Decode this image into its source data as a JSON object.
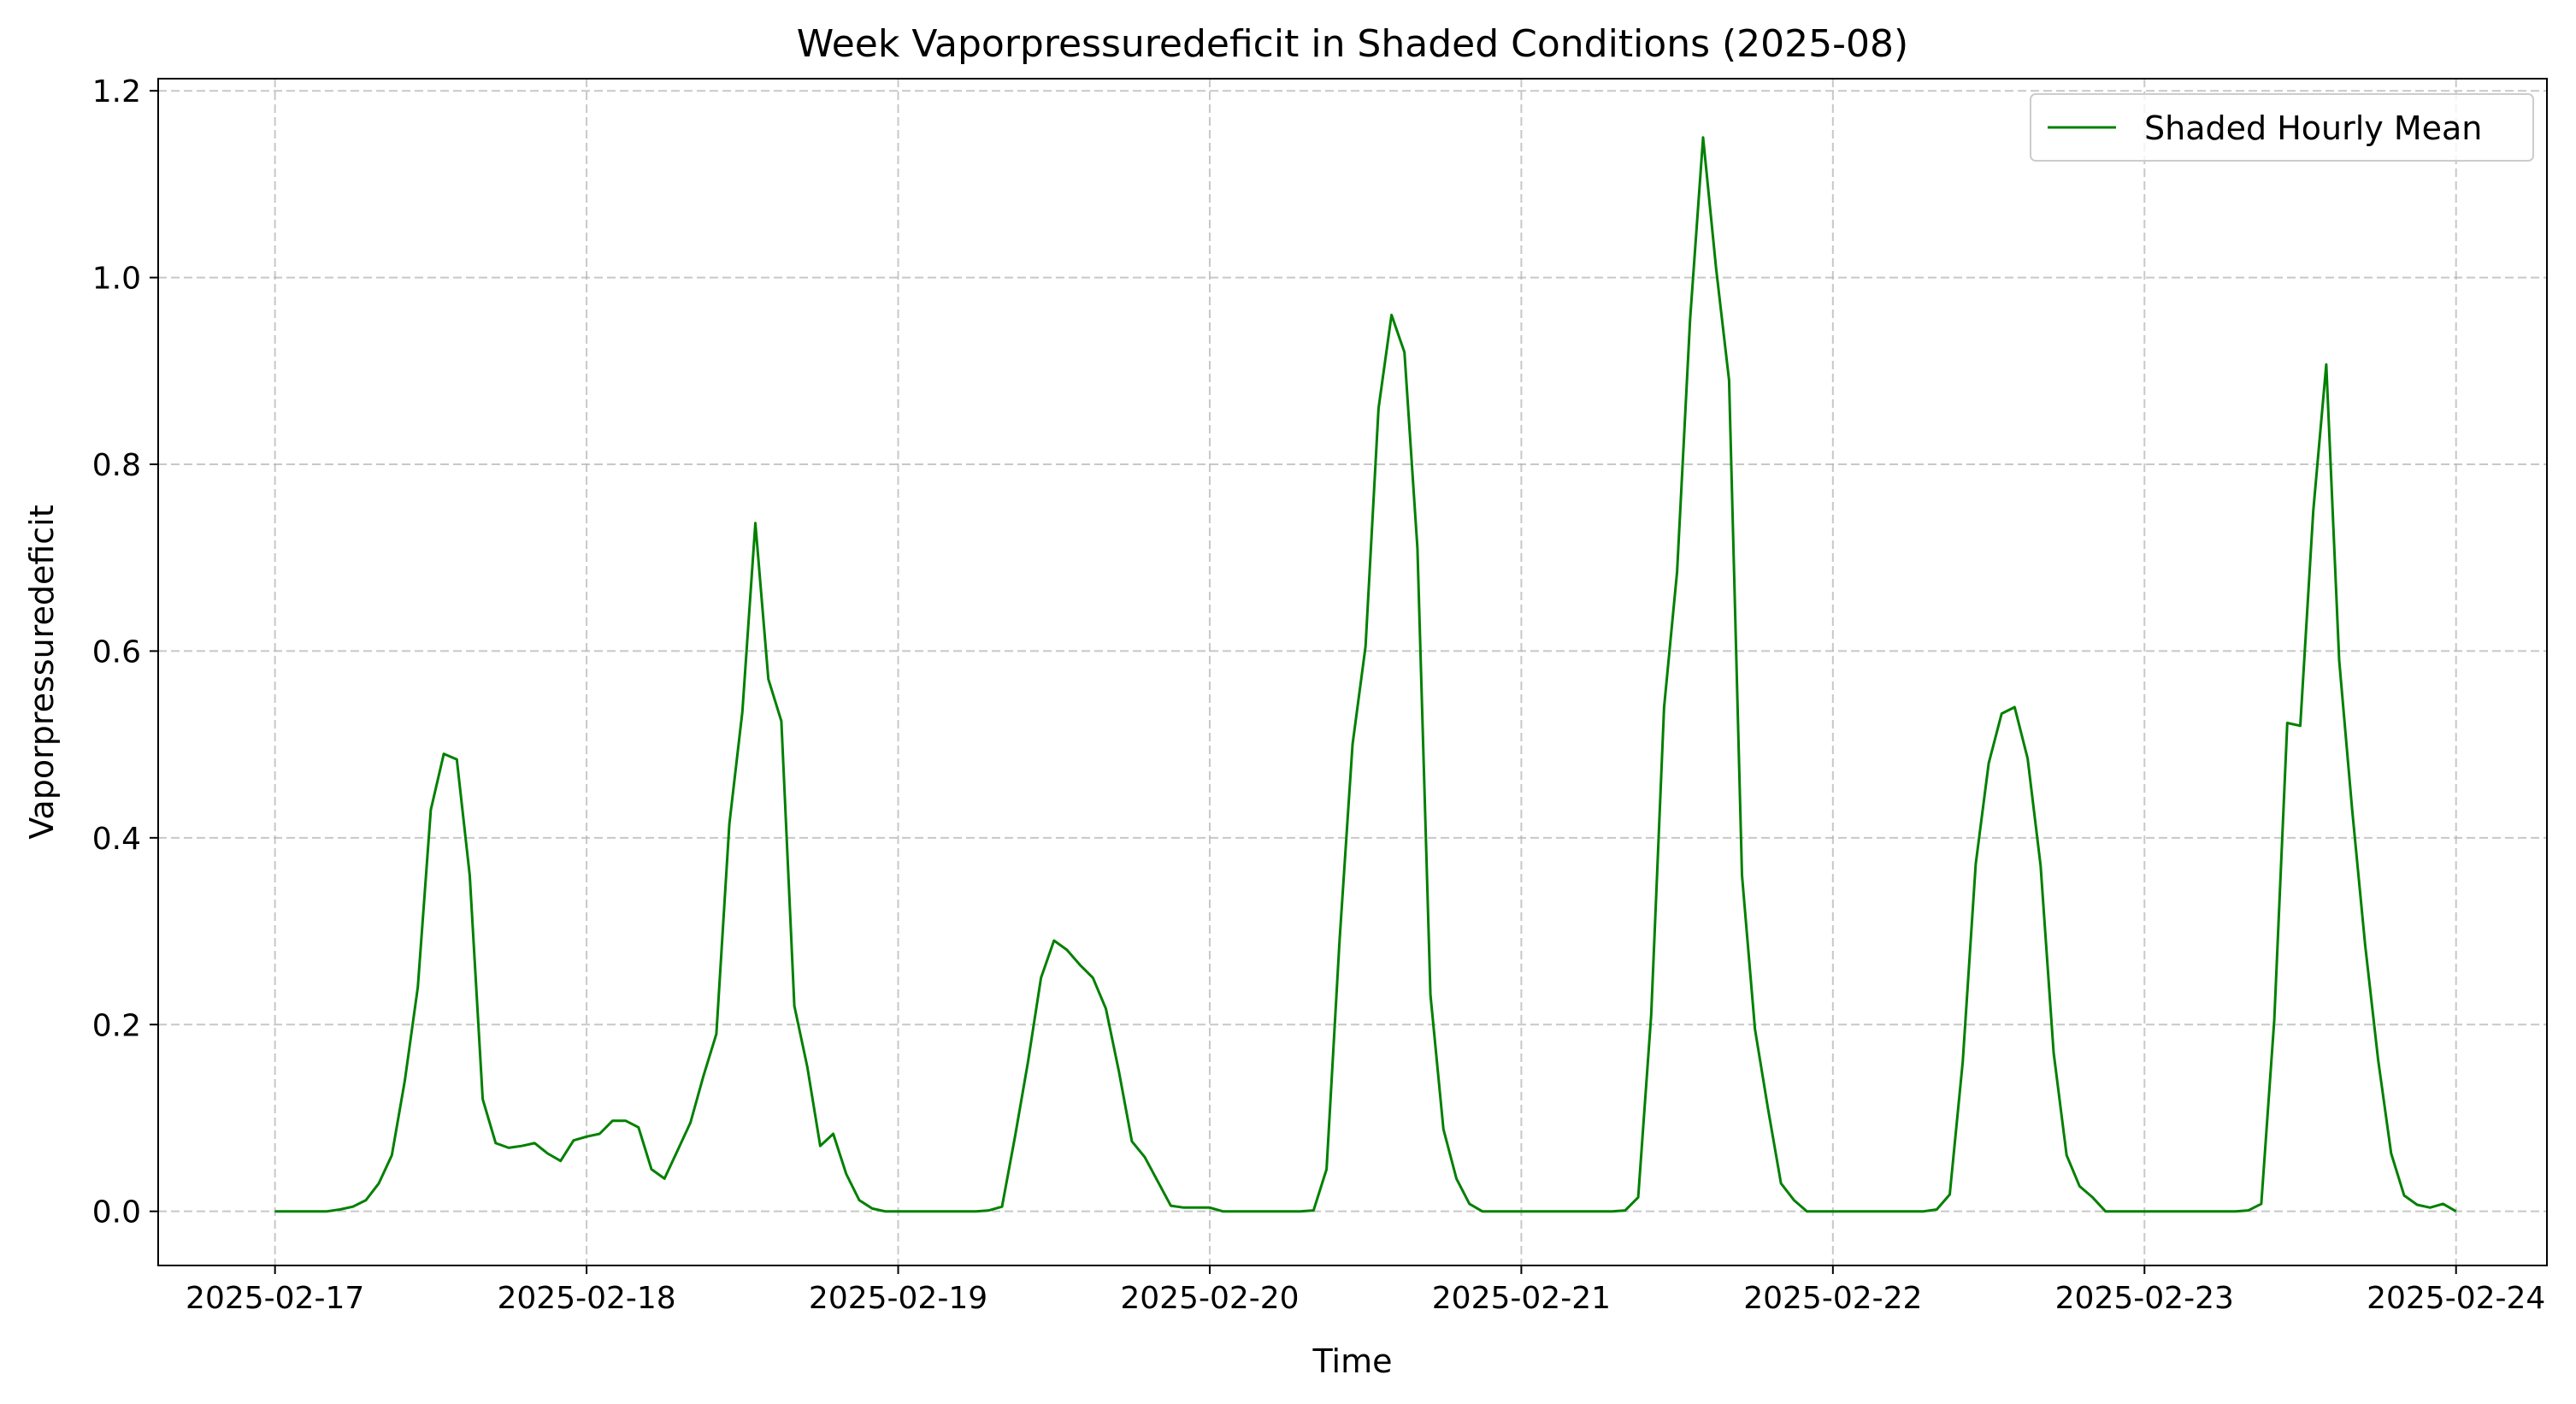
{
  "chart_data": {
    "type": "line",
    "title": "Week Vaporpressuredeficit in Shaded Conditions (2025-08)",
    "xlabel": "Time",
    "ylabel": "Vaporpressuredeficit",
    "x_ticks": [
      "2025-02-17",
      "2025-02-18",
      "2025-02-19",
      "2025-02-20",
      "2025-02-21",
      "2025-02-22",
      "2025-02-23",
      "2025-02-24"
    ],
    "y_ticks": [
      "0.0",
      "0.2",
      "0.4",
      "0.6",
      "0.8",
      "1.0",
      "1.2"
    ],
    "xlim": [
      "2025-02-16 15:00",
      "2025-02-24 07:00"
    ],
    "ylim": [
      -0.058,
      1.213
    ],
    "grid": true,
    "grid_style": "dashed",
    "legend_position": "upper right",
    "series": [
      {
        "name": "Shaded Hourly Mean",
        "color": "#008000",
        "x_start": "2025-02-17 00:00",
        "x_interval_hours": 1,
        "values": [
          0,
          0,
          0,
          0,
          0,
          0.002,
          0.005,
          0.012,
          0.03,
          0.06,
          0.14,
          0.24,
          0.43,
          0.49,
          0.484,
          0.36,
          0.12,
          0.073,
          0.068,
          0.07,
          0.073,
          0.062,
          0.054,
          0.076,
          0.08,
          0.083,
          0.097,
          0.097,
          0.09,
          0.045,
          0.035,
          0.065,
          0.095,
          0.145,
          0.19,
          0.415,
          0.535,
          0.737,
          0.57,
          0.525,
          0.22,
          0.155,
          0.07,
          0.083,
          0.04,
          0.012,
          0.003,
          0,
          0,
          0,
          0,
          0,
          0,
          0,
          0,
          0.001,
          0.005,
          0.08,
          0.16,
          0.25,
          0.29,
          0.28,
          0.264,
          0.25,
          0.217,
          0.15,
          0.075,
          0.058,
          0.032,
          0.006,
          0.004,
          0.004,
          0.004,
          0,
          0,
          0,
          0,
          0,
          0,
          0,
          0.001,
          0.045,
          0.29,
          0.5,
          0.605,
          0.86,
          0.96,
          0.92,
          0.71,
          0.232,
          0.088,
          0.035,
          0.008,
          0,
          0,
          0,
          0,
          0,
          0,
          0,
          0,
          0,
          0,
          0,
          0.001,
          0.015,
          0.21,
          0.54,
          0.685,
          0.955,
          1.15,
          1.01,
          0.89,
          0.36,
          0.195,
          0.11,
          0.03,
          0.012,
          0,
          0,
          0,
          0,
          0,
          0,
          0,
          0,
          0,
          0,
          0.002,
          0.018,
          0.16,
          0.372,
          0.48,
          0.533,
          0.54,
          0.485,
          0.37,
          0.17,
          0.06,
          0.027,
          0.015,
          0,
          0,
          0,
          0,
          0,
          0,
          0,
          0,
          0,
          0,
          0,
          0.001,
          0.008,
          0.205,
          0.523,
          0.52,
          0.75,
          0.907,
          0.59,
          0.43,
          0.285,
          0.162,
          0.062,
          0.017,
          0.007,
          0.004,
          0.008,
          0
        ]
      }
    ]
  }
}
